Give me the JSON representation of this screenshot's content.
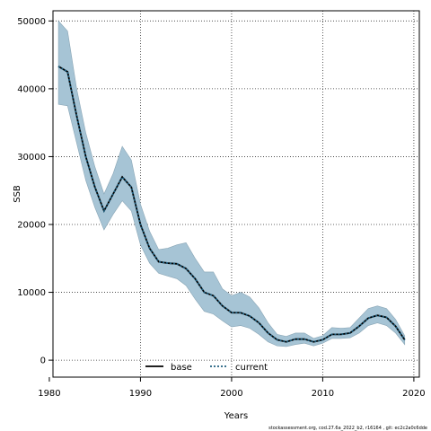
{
  "chart_data": {
    "type": "line",
    "xlabel": "Years",
    "ylabel": "SSB",
    "xlim": [
      1980.4,
      2020.6
    ],
    "ylim": [
      -2500,
      51500
    ],
    "xticks": [
      1980,
      1990,
      2000,
      2010,
      2020
    ],
    "yticks": [
      0,
      10000,
      20000,
      30000,
      40000,
      50000
    ],
    "grid": true,
    "legend_position": "bottom-center",
    "band_color": "#a6c4d5",
    "band_edge_color": "#8aa6b6",
    "x": [
      1981,
      1982,
      1983,
      1984,
      1985,
      1986,
      1987,
      1988,
      1989,
      1990,
      1991,
      1992,
      1993,
      1994,
      1995,
      1996,
      1997,
      1998,
      1999,
      2000,
      2001,
      2002,
      2003,
      2004,
      2005,
      2006,
      2007,
      2008,
      2009,
      2010,
      2011,
      2012,
      2013,
      2014,
      2015,
      2016,
      2017,
      2018,
      2019
    ],
    "series": [
      {
        "name": "base",
        "line_style": "solid",
        "color": "#000000",
        "values": [
          43300,
          42500,
          36000,
          30000,
          25500,
          22000,
          24500,
          27000,
          25500,
          20000,
          16500,
          14500,
          14300,
          14200,
          13500,
          12000,
          10000,
          9500,
          8000,
          7000,
          7000,
          6500,
          5500,
          4000,
          3000,
          2700,
          3100,
          3100,
          2700,
          3000,
          3800,
          3800,
          4000,
          5000,
          6200,
          6600,
          6300,
          5000,
          3000
        ]
      },
      {
        "name": "current",
        "line_style": "dotted",
        "color": "#1f5f7f",
        "values": [
          43300,
          42500,
          36000,
          30000,
          25500,
          22000,
          24500,
          27000,
          25500,
          20000,
          16500,
          14500,
          14300,
          14200,
          13500,
          12000,
          10000,
          9500,
          8000,
          7000,
          7000,
          6500,
          5500,
          4000,
          3000,
          2700,
          3100,
          3100,
          2700,
          3000,
          3800,
          3800,
          4000,
          5000,
          6200,
          6600,
          6300,
          5000,
          3000
        ]
      }
    ],
    "band_upper": [
      50000,
      48500,
      40000,
      33500,
      28500,
      24500,
      27500,
      31500,
      29500,
      23000,
      19000,
      16300,
      16500,
      17000,
      17300,
      15000,
      13000,
      13000,
      10500,
      9500,
      10000,
      9300,
      7700,
      5500,
      3800,
      3500,
      4000,
      4000,
      3200,
      3600,
      4800,
      4700,
      4800,
      6200,
      7600,
      8000,
      7600,
      6000,
      3600
    ],
    "band_lower": [
      37700,
      37500,
      32000,
      26500,
      22500,
      19200,
      21500,
      23500,
      22000,
      17000,
      14300,
      12800,
      12400,
      12000,
      11000,
      9000,
      7200,
      6800,
      5800,
      4900,
      5100,
      4700,
      3800,
      2700,
      2100,
      2000,
      2300,
      2500,
      2100,
      2500,
      3200,
      3200,
      3300,
      4000,
      5100,
      5500,
      5100,
      4000,
      2300
    ]
  },
  "footer": "stockassessment.org, cod.27.6a_2022_b2, r16164 , git: ec2c2a0c6dde"
}
